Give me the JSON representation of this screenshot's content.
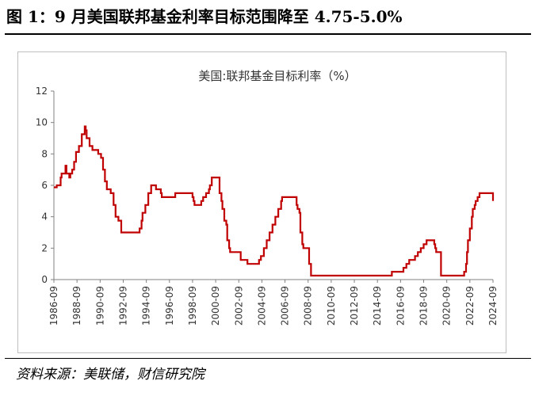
{
  "figure": {
    "title": "图 1：9 月美国联邦基金利率目标范围降至 4.75-5.0%",
    "source": "资料来源：美联储，财信研究院"
  },
  "chart_data": {
    "type": "line",
    "title": "美国:联邦基金目标利率（%）",
    "xlabel": "",
    "ylabel": "",
    "ylim": [
      0,
      12
    ],
    "yticks": [
      0,
      2,
      4,
      6,
      8,
      10,
      12
    ],
    "xlim": [
      "1986-09",
      "2024-09"
    ],
    "xticks": [
      "1986-09",
      "1988-09",
      "1990-09",
      "1992-09",
      "1994-09",
      "1996-09",
      "1998-09",
      "2000-09",
      "2002-09",
      "2004-09",
      "2006-09",
      "2008-09",
      "2010-09",
      "2012-09",
      "2014-09",
      "2016-09",
      "2018-09",
      "2020-09",
      "2022-09",
      "2024-09"
    ],
    "grid": false,
    "legend": "none",
    "line_color": "#c00000",
    "series": [
      {
        "name": "",
        "x": [
          "1986-09",
          "1986-12",
          "1987-03",
          "1987-04",
          "1987-05",
          "1987-06",
          "1987-09",
          "1987-10",
          "1987-11",
          "1988-01",
          "1988-02",
          "1988-04",
          "1988-06",
          "1988-08",
          "1988-11",
          "1989-02",
          "1989-05",
          "1989-06",
          "1989-07",
          "1989-10",
          "1990-01",
          "1990-07",
          "1990-10",
          "1990-12",
          "1991-02",
          "1991-04",
          "1991-08",
          "1991-11",
          "1992-01",
          "1992-04",
          "1992-07",
          "1994-02",
          "1994-04",
          "1994-05",
          "1994-08",
          "1994-11",
          "1995-02",
          "1995-07",
          "1995-12",
          "1996-01",
          "1997-03",
          "1998-09",
          "1998-10",
          "1998-11",
          "1999-06",
          "1999-08",
          "1999-11",
          "2000-02",
          "2000-03",
          "2000-05",
          "2001-01",
          "2001-03",
          "2001-04",
          "2001-06",
          "2001-08",
          "2001-09",
          "2001-11",
          "2001-12",
          "2002-11",
          "2003-06",
          "2004-06",
          "2004-08",
          "2004-11",
          "2005-02",
          "2005-05",
          "2005-08",
          "2005-11",
          "2006-02",
          "2006-05",
          "2006-06",
          "2007-09",
          "2007-10",
          "2007-12",
          "2008-01",
          "2008-03",
          "2008-04",
          "2008-10",
          "2008-12",
          "2015-12",
          "2016-12",
          "2017-03",
          "2017-06",
          "2017-12",
          "2018-03",
          "2018-06",
          "2018-09",
          "2018-12",
          "2019-08",
          "2019-09",
          "2019-10",
          "2020-03",
          "2022-03",
          "2022-05",
          "2022-06",
          "2022-07",
          "2022-09",
          "2022-11",
          "2022-12",
          "2023-02",
          "2023-03",
          "2023-05",
          "2023-07",
          "2024-08",
          "2024-09"
        ],
        "values": [
          5.875,
          6.0,
          6.0,
          6.5,
          6.75,
          6.75,
          7.25,
          6.75,
          6.75,
          6.5,
          6.75,
          7.0,
          7.5,
          8.125,
          8.5,
          9.25,
          9.75,
          9.5,
          9.0,
          8.5,
          8.25,
          8.0,
          7.75,
          7.0,
          6.25,
          5.75,
          5.5,
          4.75,
          4.0,
          3.75,
          3.0,
          3.25,
          3.75,
          4.25,
          4.75,
          5.5,
          6.0,
          5.75,
          5.5,
          5.25,
          5.5,
          5.25,
          5.0,
          4.75,
          5.0,
          5.25,
          5.5,
          5.75,
          6.0,
          6.5,
          5.5,
          5.0,
          4.5,
          3.75,
          3.5,
          2.5,
          2.0,
          1.75,
          1.25,
          1.0,
          1.25,
          1.5,
          2.0,
          2.5,
          3.0,
          3.5,
          4.0,
          4.5,
          5.0,
          5.25,
          4.75,
          4.5,
          4.25,
          3.0,
          2.25,
          2.0,
          1.0,
          0.25,
          0.5,
          0.75,
          1.0,
          1.25,
          1.5,
          1.75,
          2.0,
          2.25,
          2.5,
          2.25,
          2.0,
          1.75,
          0.25,
          0.5,
          1.0,
          1.75,
          2.5,
          3.25,
          4.0,
          4.5,
          4.75,
          5.0,
          5.25,
          5.5,
          5.5,
          5.0
        ]
      }
    ]
  }
}
